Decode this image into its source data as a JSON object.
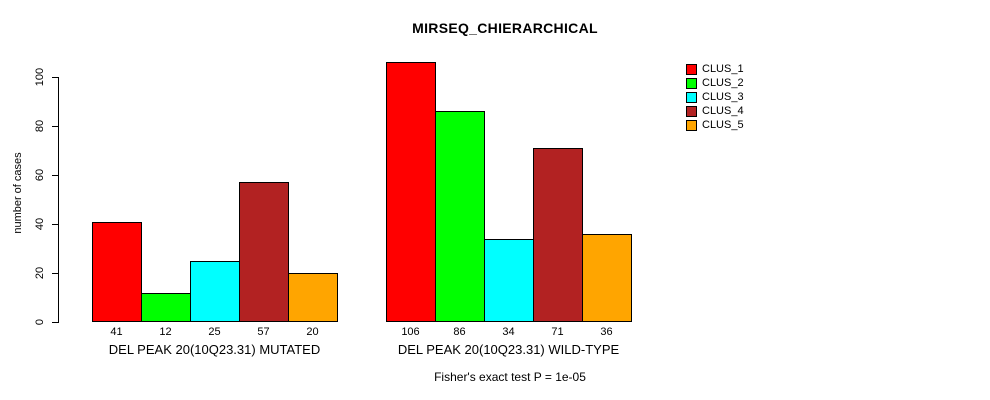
{
  "chart_data": {
    "type": "bar",
    "title": "MIRSEQ_CHIERARCHICAL",
    "ylabel": "number of cases",
    "xlabel": "",
    "yticks": [
      0,
      20,
      40,
      60,
      80,
      100
    ],
    "ylim": [
      0,
      110
    ],
    "grid": false,
    "legend_position": "right",
    "series_names": [
      "CLUS_1",
      "CLUS_2",
      "CLUS_3",
      "CLUS_4",
      "CLUS_5"
    ],
    "series_colors": [
      "#ff0000",
      "#00ff00",
      "#00ffff",
      "#b22222",
      "#ffa500"
    ],
    "groups": [
      {
        "label": "DEL PEAK 20(10Q23.31) MUTATED",
        "values": [
          41,
          12,
          25,
          57,
          20
        ]
      },
      {
        "label": "DEL PEAK 20(10Q23.31) WILD-TYPE",
        "values": [
          106,
          86,
          34,
          71,
          36
        ]
      }
    ],
    "annotation": "Fisher's exact test P = 1e-05",
    "bar_border_color": "#000000",
    "background_color": "#ffffff"
  }
}
